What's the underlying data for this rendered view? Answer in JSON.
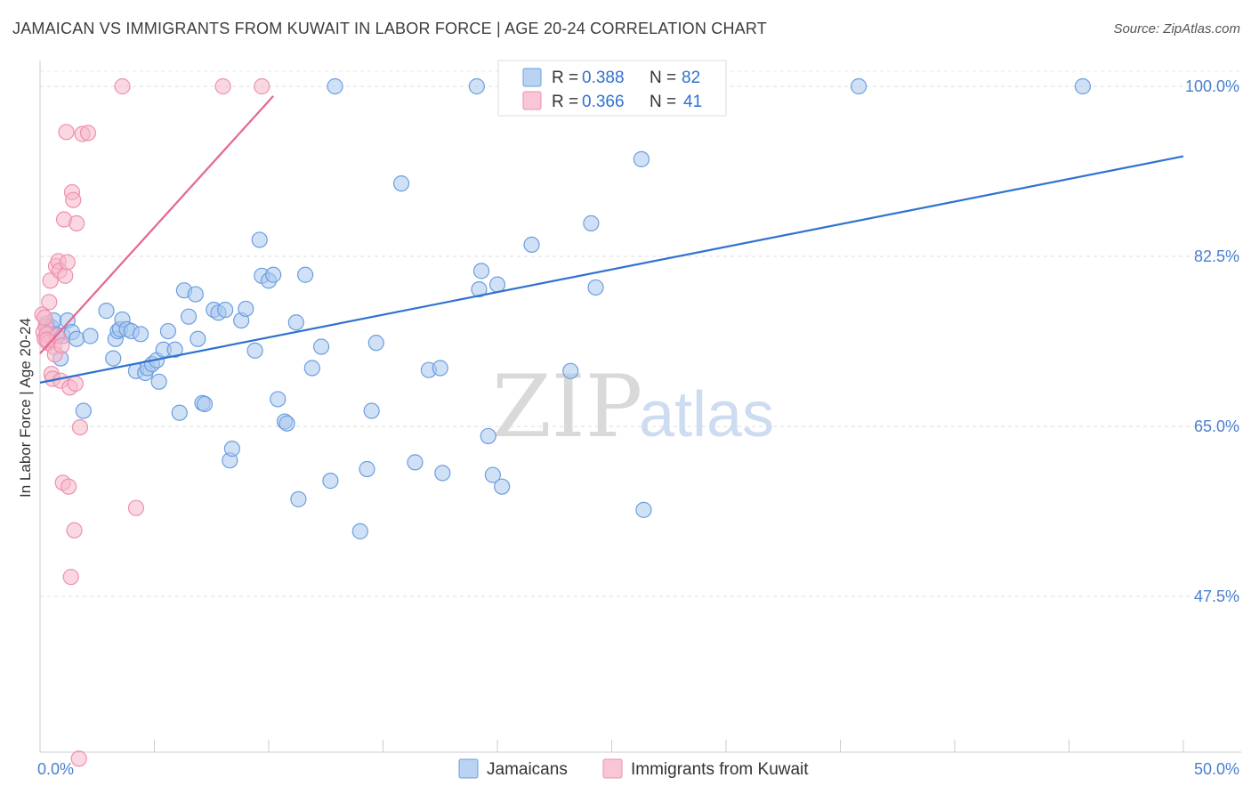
{
  "title": "JAMAICAN VS IMMIGRANTS FROM KUWAIT IN LABOR FORCE | AGE 20-24 CORRELATION CHART",
  "source": "Source: ZipAtlas.com",
  "watermark": {
    "zip": "ZIP",
    "atlas": "atlas"
  },
  "colors": {
    "jamaicans_fill": "#a9c8ef",
    "jamaicans_stroke": "#6b9ee0",
    "jamaicans_line": "#2f72cf",
    "kuwait_fill": "#f6b8cb",
    "kuwait_stroke": "#ee90ae",
    "kuwait_line": "#e5668f",
    "tick_label": "#4a7fd0"
  },
  "legend": {
    "rows": [
      {
        "r_label": "R = ",
        "r_value": "0.388",
        "n_label": "N = ",
        "n_value": "82"
      },
      {
        "r_label": "R = ",
        "r_value": "0.366",
        "n_label": "N = ",
        "n_value": "41"
      }
    ]
  },
  "chart_data": {
    "type": "scatter",
    "title": "JAMAICAN VS IMMIGRANTS FROM KUWAIT IN LABOR FORCE | AGE 20-24 CORRELATION CHART",
    "xlabel": "",
    "ylabel": "In Labor Force | Age 20-24",
    "xlim": [
      0,
      50
    ],
    "ylim": [
      32,
      103
    ],
    "x_tick_labels": [
      "0.0%",
      "50.0%"
    ],
    "y_ticks": [
      47.5,
      65.0,
      82.5,
      100.0
    ],
    "y_tick_labels": [
      "47.5%",
      "65.0%",
      "82.5%",
      "100.0%"
    ],
    "grid": "horizontal dashed",
    "legend_placement": "top-center",
    "series": [
      {
        "name": "Jamaicans",
        "r": 0.388,
        "n": 82,
        "trend": [
          [
            0,
            69.5
          ],
          [
            50,
            92.8
          ]
        ],
        "points": [
          [
            0.3,
            75.6
          ],
          [
            0.5,
            75.2
          ],
          [
            0.6,
            75.9
          ],
          [
            0.7,
            74.5
          ],
          [
            0.9,
            72.0
          ],
          [
            1.0,
            74.3
          ],
          [
            1.2,
            75.9
          ],
          [
            1.4,
            74.7
          ],
          [
            1.6,
            74.0
          ],
          [
            1.9,
            66.6
          ],
          [
            2.2,
            74.3
          ],
          [
            2.9,
            76.9
          ],
          [
            3.2,
            72.0
          ],
          [
            3.3,
            74.0
          ],
          [
            3.4,
            74.8
          ],
          [
            3.5,
            75.0
          ],
          [
            3.6,
            76.0
          ],
          [
            3.8,
            75.0
          ],
          [
            4.0,
            74.8
          ],
          [
            4.2,
            70.7
          ],
          [
            4.4,
            74.5
          ],
          [
            4.6,
            70.5
          ],
          [
            4.7,
            71.0
          ],
          [
            4.9,
            71.4
          ],
          [
            5.1,
            71.8
          ],
          [
            5.2,
            69.6
          ],
          [
            5.4,
            72.9
          ],
          [
            5.6,
            74.8
          ],
          [
            5.9,
            72.9
          ],
          [
            6.1,
            66.4
          ],
          [
            6.3,
            79.0
          ],
          [
            6.5,
            76.3
          ],
          [
            6.8,
            78.6
          ],
          [
            6.9,
            74.0
          ],
          [
            7.1,
            67.4
          ],
          [
            7.2,
            67.3
          ],
          [
            7.6,
            77.0
          ],
          [
            7.8,
            76.7
          ],
          [
            8.1,
            77.0
          ],
          [
            8.3,
            61.5
          ],
          [
            8.4,
            62.7
          ],
          [
            8.8,
            75.9
          ],
          [
            9.0,
            77.1
          ],
          [
            9.4,
            72.8
          ],
          [
            9.6,
            84.2
          ],
          [
            9.7,
            80.5
          ],
          [
            10.0,
            80.0
          ],
          [
            10.2,
            80.6
          ],
          [
            10.4,
            67.8
          ],
          [
            10.7,
            65.5
          ],
          [
            10.8,
            65.3
          ],
          [
            11.2,
            75.7
          ],
          [
            11.3,
            57.5
          ],
          [
            11.6,
            80.6
          ],
          [
            11.9,
            71.0
          ],
          [
            12.3,
            73.2
          ],
          [
            12.7,
            59.4
          ],
          [
            12.9,
            100.0
          ],
          [
            14.0,
            54.2
          ],
          [
            14.3,
            60.6
          ],
          [
            14.5,
            66.6
          ],
          [
            14.7,
            73.6
          ],
          [
            15.8,
            90.0
          ],
          [
            16.4,
            61.3
          ],
          [
            17.0,
            70.8
          ],
          [
            17.5,
            71.0
          ],
          [
            17.6,
            60.2
          ],
          [
            19.1,
            100.0
          ],
          [
            19.2,
            79.1
          ],
          [
            19.3,
            81.0
          ],
          [
            19.6,
            64.0
          ],
          [
            19.8,
            60.0
          ],
          [
            20.0,
            79.6
          ],
          [
            20.2,
            58.8
          ],
          [
            21.5,
            83.7
          ],
          [
            23.2,
            70.7
          ],
          [
            24.1,
            85.9
          ],
          [
            24.3,
            79.3
          ],
          [
            26.3,
            92.5
          ],
          [
            26.4,
            56.4
          ],
          [
            35.8,
            100.0
          ],
          [
            45.6,
            100.0
          ]
        ]
      },
      {
        "name": "Immigrants from Kuwait",
        "r": 0.366,
        "n": 41,
        "trend": [
          [
            0,
            72.5
          ],
          [
            10.2,
            99.0
          ]
        ],
        "points": [
          [
            0.1,
            76.5
          ],
          [
            0.15,
            74.7
          ],
          [
            0.2,
            74.0
          ],
          [
            0.25,
            75.3
          ],
          [
            0.3,
            74.5
          ],
          [
            0.35,
            73.6
          ],
          [
            0.4,
            77.8
          ],
          [
            0.45,
            80.0
          ],
          [
            0.5,
            70.4
          ],
          [
            0.55,
            69.9
          ],
          [
            0.6,
            73.2
          ],
          [
            0.65,
            72.4
          ],
          [
            0.7,
            81.5
          ],
          [
            0.75,
            74.3
          ],
          [
            0.8,
            82.0
          ],
          [
            0.85,
            81.0
          ],
          [
            0.9,
            69.7
          ],
          [
            0.95,
            73.3
          ],
          [
            1.0,
            59.2
          ],
          [
            1.05,
            86.3
          ],
          [
            1.1,
            80.5
          ],
          [
            1.15,
            95.3
          ],
          [
            1.2,
            81.9
          ],
          [
            1.25,
            58.8
          ],
          [
            1.3,
            69.0
          ],
          [
            1.35,
            49.5
          ],
          [
            1.4,
            89.1
          ],
          [
            1.45,
            88.3
          ],
          [
            1.5,
            54.3
          ],
          [
            1.55,
            69.4
          ],
          [
            1.6,
            85.9
          ],
          [
            1.7,
            30.8
          ],
          [
            1.75,
            64.9
          ],
          [
            1.85,
            95.1
          ],
          [
            2.1,
            95.2
          ],
          [
            3.6,
            100.0
          ],
          [
            4.2,
            56.6
          ],
          [
            8.0,
            100.0
          ],
          [
            9.7,
            100.0
          ],
          [
            0.2,
            76.2
          ],
          [
            0.3,
            73.9
          ]
        ]
      }
    ]
  }
}
